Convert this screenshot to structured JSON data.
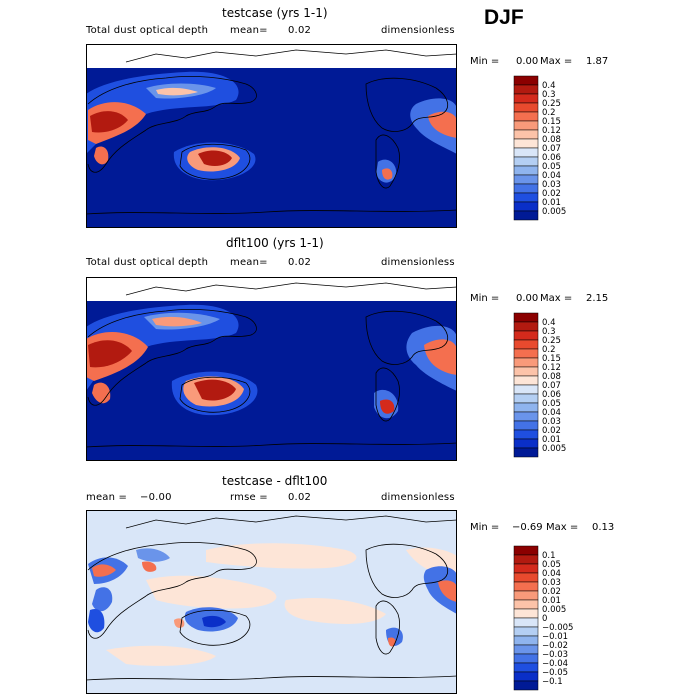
{
  "season": "DJF",
  "chart_data": [
    {
      "type": "heatmap",
      "title": "testcase (yrs 1-1)",
      "variable": "Total dust optical depth",
      "stat_label": "mean=",
      "stat_value": "0.02",
      "units": "dimensionless",
      "min_label": "Min =",
      "min_value": "0.00",
      "max_label": "Max =",
      "max_value": "1.87",
      "colorbar": {
        "levels": [
          "0.4",
          "0.3",
          "0.25",
          "0.2",
          "0.15",
          "0.12",
          "0.08",
          "0.07",
          "0.06",
          "0.05",
          "0.04",
          "0.03",
          "0.02",
          "0.01",
          "0.005"
        ],
        "colors": [
          "#8b0000",
          "#b21a10",
          "#d42a1c",
          "#e84a2e",
          "#f46f4f",
          "#f99a7a",
          "#fcc3a9",
          "#fde5d7",
          "#d9e6f8",
          "#b4cff3",
          "#8fb4ee",
          "#6a94ea",
          "#4372e6",
          "#1f4fe0",
          "#0a2fc8",
          "#001a96"
        ]
      }
    },
    {
      "type": "heatmap",
      "title": "dflt100 (yrs 1-1)",
      "variable": "Total dust optical depth",
      "stat_label": "mean=",
      "stat_value": "0.02",
      "units": "dimensionless",
      "min_label": "Min =",
      "min_value": "0.00",
      "max_label": "Max =",
      "max_value": "2.15",
      "colorbar": {
        "levels": [
          "0.4",
          "0.3",
          "0.25",
          "0.2",
          "0.15",
          "0.12",
          "0.08",
          "0.07",
          "0.06",
          "0.05",
          "0.04",
          "0.03",
          "0.02",
          "0.01",
          "0.005"
        ],
        "colors": [
          "#8b0000",
          "#b21a10",
          "#d42a1c",
          "#e84a2e",
          "#f46f4f",
          "#f99a7a",
          "#fcc3a9",
          "#fde5d7",
          "#d9e6f8",
          "#b4cff3",
          "#8fb4ee",
          "#6a94ea",
          "#4372e6",
          "#1f4fe0",
          "#0a2fc8",
          "#001a96"
        ]
      }
    },
    {
      "type": "heatmap",
      "title": "testcase - dflt100",
      "stat_label": "mean =",
      "stat_value": "−0.00",
      "rmse_label": "rmse =",
      "rmse_value": "0.02",
      "units": "dimensionless",
      "min_label": "Min =",
      "min_value": "−0.69",
      "max_label": "Max =",
      "max_value": "0.13",
      "colorbar": {
        "levels": [
          "0.1",
          "0.05",
          "0.04",
          "0.03",
          "0.02",
          "0.01",
          "0.005",
          "0",
          "−0.005",
          "−0.01",
          "−0.02",
          "−0.03",
          "−0.04",
          "−0.05",
          "−0.1"
        ],
        "colors": [
          "#8b0000",
          "#b21a10",
          "#d42a1c",
          "#e84a2e",
          "#f46f4f",
          "#f99a7a",
          "#fcc3a9",
          "#fde5d7",
          "#d9e6f8",
          "#b4cff3",
          "#8fb4ee",
          "#6a94ea",
          "#4372e6",
          "#1f4fe0",
          "#0a2fc8",
          "#001a96"
        ]
      }
    }
  ]
}
